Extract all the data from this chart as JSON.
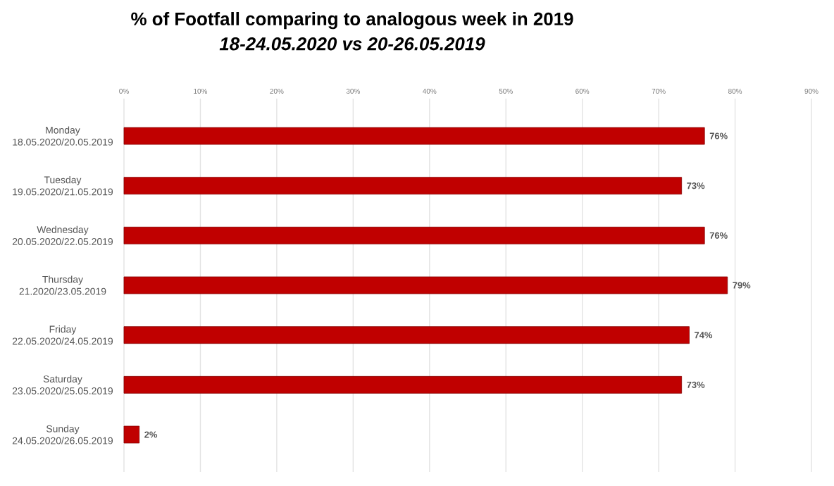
{
  "chart_data": {
    "type": "bar",
    "orientation": "horizontal",
    "title": "% of Footfall comparing to analogous week in 2019",
    "subtitle": "18-24.05.2020 vs 20-26.05.2019",
    "categories": [
      "Monday 18.05.2020/20.05.2019",
      "Tuesday 19.05.2020/21.05.2019",
      "Wednesday 20.05.2020/22.05.2019",
      "Thursday 21.2020/23.05.2019",
      "Friday 22.05.2020/24.05.2019",
      "Saturday 23.05.2020/25.05.2019",
      "Sunday 24.05.2020/26.05.2019"
    ],
    "values": [
      76,
      73,
      76,
      79,
      74,
      73,
      2
    ],
    "value_labels": [
      "76%",
      "73%",
      "76%",
      "79%",
      "74%",
      "73%",
      "2%"
    ],
    "color": "#c00000",
    "xlim": [
      0,
      90
    ],
    "xticks": [
      {
        "value": 0,
        "label": "0%"
      },
      {
        "value": 10,
        "label": "10%"
      },
      {
        "value": 20,
        "label": "20%"
      },
      {
        "value": 30,
        "label": "30%"
      },
      {
        "value": 40,
        "label": "40%"
      },
      {
        "value": 50,
        "label": "50%"
      },
      {
        "value": 60,
        "label": "60%"
      },
      {
        "value": 70,
        "label": "70%"
      },
      {
        "value": 80,
        "label": "80%"
      },
      {
        "value": 90,
        "label": "90%"
      }
    ],
    "grid": "x"
  }
}
